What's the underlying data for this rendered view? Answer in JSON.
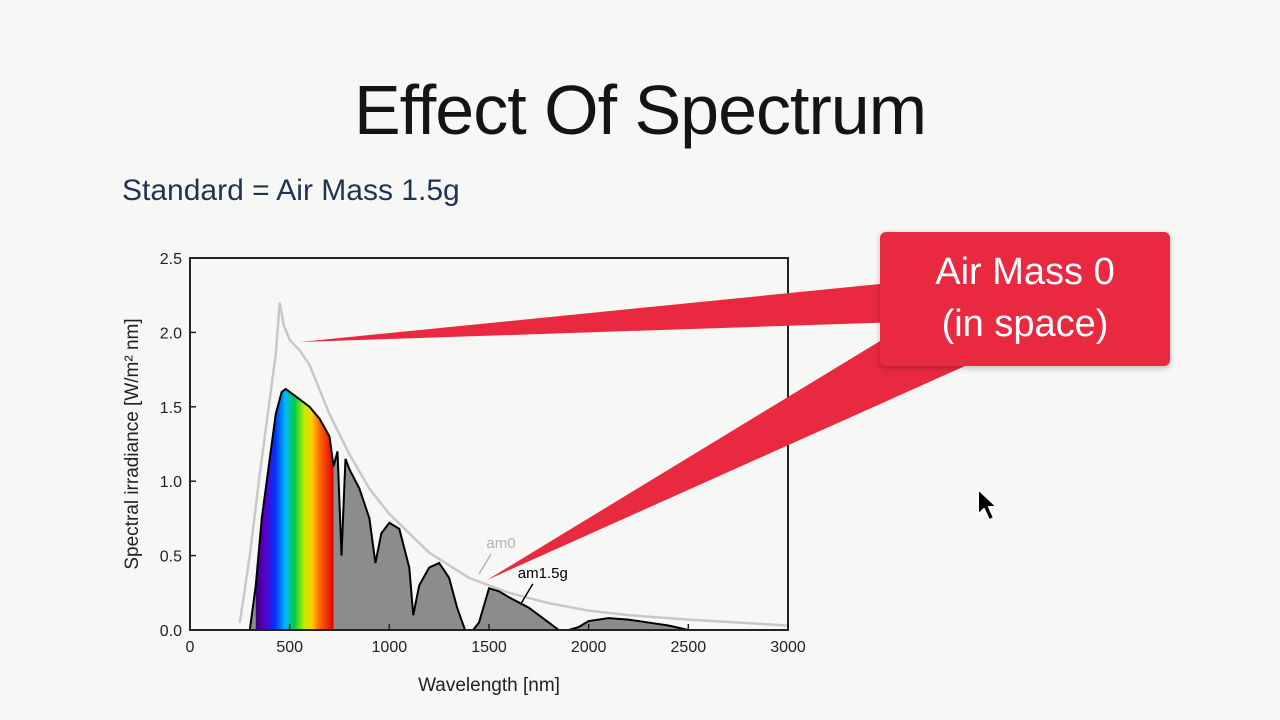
{
  "slide": {
    "title": "Effect Of Spectrum",
    "subtitle": "Standard = Air Mass 1.5g"
  },
  "callout": {
    "line1": "Air Mass 0",
    "line2": "(in space)",
    "color": "#e8293f"
  },
  "chart_data": {
    "type": "area",
    "xlabel": "Wavelength [nm]",
    "ylabel": "Spectral irradiance [W/m² nm]",
    "xlim": [
      0,
      3000
    ],
    "ylim": [
      0,
      2.5
    ],
    "xticks": [
      "0",
      "500",
      "1000",
      "1500",
      "2000",
      "2500",
      "3000"
    ],
    "yticks": [
      "0.0",
      "0.5",
      "1.0",
      "1.5",
      "2.0",
      "2.5"
    ],
    "grid": false,
    "series": [
      {
        "name": "am0",
        "color": "#c8c8c8",
        "x": [
          250,
          300,
          350,
          400,
          430,
          450,
          470,
          500,
          550,
          600,
          700,
          800,
          900,
          1000,
          1200,
          1400,
          1600,
          1800,
          2000,
          2200,
          2500,
          3000
        ],
        "y": [
          0.05,
          0.5,
          1.05,
          1.55,
          1.85,
          2.2,
          2.05,
          1.95,
          1.88,
          1.78,
          1.45,
          1.18,
          0.95,
          0.78,
          0.52,
          0.35,
          0.25,
          0.18,
          0.13,
          0.1,
          0.07,
          0.03
        ]
      },
      {
        "name": "am1.5g",
        "color": "#000000",
        "fill": "#8c8c8c",
        "x": [
          300,
          330,
          360,
          400,
          430,
          460,
          480,
          500,
          550,
          600,
          650,
          700,
          720,
          740,
          760,
          780,
          800,
          850,
          900,
          930,
          960,
          1000,
          1050,
          1100,
          1120,
          1150,
          1200,
          1250,
          1300,
          1340,
          1380,
          1420,
          1450,
          1500,
          1550,
          1600,
          1700,
          1800,
          1850,
          1900,
          1950,
          2000,
          2100,
          2200,
          2300,
          2400,
          2500
        ],
        "y": [
          0.0,
          0.3,
          0.75,
          1.15,
          1.45,
          1.6,
          1.62,
          1.6,
          1.55,
          1.5,
          1.42,
          1.3,
          1.1,
          1.2,
          0.5,
          1.15,
          1.08,
          0.95,
          0.75,
          0.45,
          0.65,
          0.72,
          0.68,
          0.42,
          0.1,
          0.3,
          0.42,
          0.45,
          0.35,
          0.15,
          0.0,
          0.0,
          0.05,
          0.28,
          0.26,
          0.22,
          0.15,
          0.05,
          0.0,
          0.0,
          0.02,
          0.06,
          0.08,
          0.07,
          0.05,
          0.03,
          0.0
        ]
      }
    ],
    "annotations": [
      {
        "text": "am0",
        "x": 1560,
        "y": 0.55,
        "color": "#b4b4b4"
      },
      {
        "text": "am1.5g",
        "x": 1770,
        "y": 0.35,
        "color": "#000000"
      }
    ]
  }
}
